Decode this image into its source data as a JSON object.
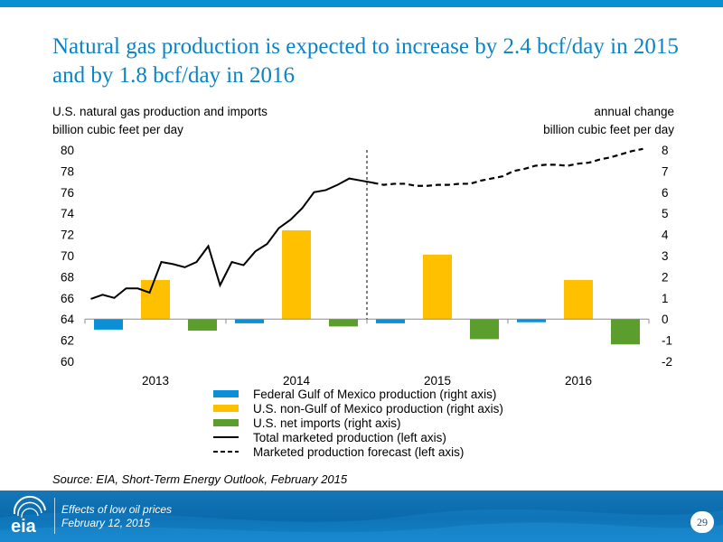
{
  "header": {
    "title": "Natural gas production is expected to increase by 2.4 bcf/day in 2015 and by 1.8 bcf/day in 2016"
  },
  "captions": {
    "left_line1": "U.S. natural gas production and imports",
    "left_line2": "billion cubic feet per day",
    "right_line1": "annual change",
    "right_line2": "billion cubic feet per day"
  },
  "source": "Source: EIA, Short-Term Energy Outlook, February 2015",
  "footer": {
    "logo_text": "eia",
    "line1": "Effects of low oil prices",
    "line2": "February 12, 2015",
    "page_number": "29"
  },
  "colors": {
    "title": "#0b84c6",
    "federal_gom": "#0b8fd6",
    "non_gom": "#ffc000",
    "net_imports": "#5c9e2d",
    "line": "#000000",
    "footer": "#0a6aab"
  },
  "chart_data": {
    "type": "bar",
    "categories": [
      "2013",
      "2014",
      "2015",
      "2016"
    ],
    "series": [
      {
        "name": "Federal Gulf of Mexico production (right axis)",
        "axis": "right",
        "color": "#0b8fd6",
        "values": [
          -0.5,
          -0.2,
          -0.2,
          -0.15
        ]
      },
      {
        "name": "U.S. non-Gulf of Mexico production (right axis)",
        "axis": "right",
        "color": "#ffc000",
        "values": [
          1.85,
          4.2,
          3.05,
          1.85
        ]
      },
      {
        "name": "U.S. net imports (right axis)",
        "axis": "right",
        "color": "#5c9e2d",
        "values": [
          -0.55,
          -0.35,
          -0.95,
          -1.2
        ]
      }
    ],
    "lines": [
      {
        "name": "Total marketed production (left axis)",
        "axis": "left",
        "style": "solid",
        "values": [
          65.9,
          66.3,
          66.0,
          66.9,
          66.9,
          66.5,
          69.4,
          69.2,
          68.9,
          69.4,
          70.9,
          67.2,
          69.4,
          69.1,
          70.4,
          71.1,
          72.6,
          73.4,
          74.5,
          76.0,
          76.2,
          76.7,
          77.3,
          77.1,
          76.9
        ]
      },
      {
        "name": "Marketed production forecast (left axis)",
        "axis": "left",
        "style": "dashed",
        "values": [
          76.9,
          76.7,
          76.8,
          76.8,
          76.6,
          76.6,
          76.7,
          76.7,
          76.8,
          76.8,
          77.1,
          77.3,
          77.5,
          78.0,
          78.2,
          78.5,
          78.6,
          78.6,
          78.5,
          78.7,
          78.8,
          79.1,
          79.3,
          79.6,
          79.9,
          80.1
        ]
      }
    ],
    "y_left": {
      "min": 60,
      "max": 80,
      "ticks": [
        "60",
        "62",
        "64",
        "66",
        "68",
        "70",
        "72",
        "74",
        "76",
        "78",
        "80"
      ]
    },
    "y_right": {
      "min": -2,
      "max": 8,
      "ticks": [
        "-2",
        "-1",
        "0",
        "1",
        "2",
        "3",
        "4",
        "5",
        "6",
        "7",
        "8"
      ]
    },
    "forecast_divider_after": "2014",
    "grid": false,
    "legend_position": "bottom"
  }
}
